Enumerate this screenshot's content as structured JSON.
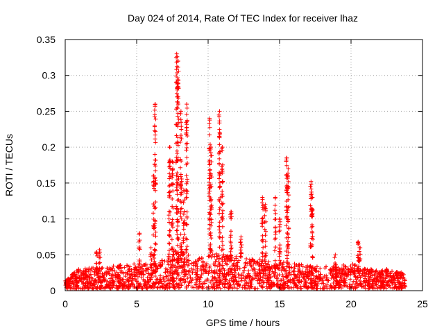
{
  "chart_data": {
    "type": "scatter",
    "title": "Day 024 of 2014, Rate Of TEC Index for receiver lhaz",
    "xlabel": "GPS time / hours",
    "ylabel": "ROTI / TECUs",
    "xlim": [
      0,
      25
    ],
    "ylim": [
      0,
      0.35
    ],
    "grid": true,
    "marker": "+",
    "color": "#ff0000",
    "x_ticks": [
      "0",
      "5",
      "10",
      "15",
      "20",
      "25"
    ],
    "y_ticks": [
      "0",
      "0.05",
      "0.1",
      "0.15",
      "0.2",
      "0.25",
      "0.3",
      "0.35"
    ],
    "x_tick_values": [
      0,
      5,
      10,
      15,
      20,
      25
    ],
    "y_tick_values": [
      0,
      0.05,
      0.1,
      0.15,
      0.2,
      0.25,
      0.3,
      0.35
    ],
    "background_band": {
      "x_range": [
        0,
        23.8
      ],
      "base_max": [
        [
          0,
          0.012
        ],
        [
          1,
          0.028
        ],
        [
          2.5,
          0.03
        ],
        [
          5,
          0.035
        ],
        [
          6.5,
          0.035
        ],
        [
          8,
          0.06
        ],
        [
          9,
          0.04
        ],
        [
          10.5,
          0.05
        ],
        [
          12,
          0.045
        ],
        [
          14,
          0.04
        ],
        [
          16,
          0.035
        ],
        [
          18,
          0.03
        ],
        [
          20,
          0.035
        ],
        [
          21,
          0.028
        ],
        [
          23.8,
          0.022
        ]
      ]
    },
    "spikes": [
      {
        "x": 2.2,
        "y_max": 0.054
      },
      {
        "x": 2.4,
        "y_max": 0.057
      },
      {
        "x": 5.2,
        "y_max": 0.08
      },
      {
        "x": 6.0,
        "y_max": 0.06
      },
      {
        "x": 6.3,
        "y_max": 0.26
      },
      {
        "x": 6.2,
        "y_max": 0.16
      },
      {
        "x": 7.3,
        "y_max": 0.2
      },
      {
        "x": 7.5,
        "y_max": 0.18
      },
      {
        "x": 7.8,
        "y_max": 0.33
      },
      {
        "x": 7.9,
        "y_max": 0.32
      },
      {
        "x": 8.1,
        "y_max": 0.25
      },
      {
        "x": 8.3,
        "y_max": 0.14
      },
      {
        "x": 8.5,
        "y_max": 0.26
      },
      {
        "x": 10.1,
        "y_max": 0.24
      },
      {
        "x": 10.2,
        "y_max": 0.2
      },
      {
        "x": 10.8,
        "y_max": 0.25
      },
      {
        "x": 11.0,
        "y_max": 0.2
      },
      {
        "x": 11.6,
        "y_max": 0.11
      },
      {
        "x": 12.3,
        "y_max": 0.075
      },
      {
        "x": 13.8,
        "y_max": 0.13
      },
      {
        "x": 14.0,
        "y_max": 0.12
      },
      {
        "x": 14.7,
        "y_max": 0.13
      },
      {
        "x": 15.0,
        "y_max": 0.1
      },
      {
        "x": 15.5,
        "y_max": 0.185
      },
      {
        "x": 15.6,
        "y_max": 0.17
      },
      {
        "x": 17.2,
        "y_max": 0.152
      },
      {
        "x": 17.3,
        "y_max": 0.13
      },
      {
        "x": 18.9,
        "y_max": 0.05
      },
      {
        "x": 20.5,
        "y_max": 0.068
      },
      {
        "x": 20.6,
        "y_max": 0.06
      },
      {
        "x": 22.5,
        "y_max": 0.03
      },
      {
        "x": 23.2,
        "y_max": 0.026
      }
    ]
  }
}
